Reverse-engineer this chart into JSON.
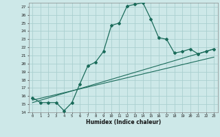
{
  "xlabel": "Humidex (Indice chaleur)",
  "ylabel": "",
  "bg_color": "#cde8e8",
  "grid_color": "#aacfcf",
  "line_color": "#1a6b5a",
  "xlim": [
    -0.5,
    23.5
  ],
  "ylim": [
    14,
    27.5
  ],
  "yticks": [
    14,
    15,
    16,
    17,
    18,
    19,
    20,
    21,
    22,
    23,
    24,
    25,
    26,
    27
  ],
  "xticks": [
    0,
    1,
    2,
    3,
    4,
    5,
    6,
    7,
    8,
    9,
    10,
    11,
    12,
    13,
    14,
    15,
    16,
    17,
    18,
    19,
    20,
    21,
    22,
    23
  ],
  "curve1_x": [
    0,
    1,
    2,
    3,
    4,
    5,
    6,
    7,
    8,
    9,
    10,
    11,
    12,
    13,
    14,
    15,
    16,
    17,
    18,
    19,
    20,
    21,
    22,
    23
  ],
  "curve1_y": [
    15.8,
    15.2,
    15.2,
    15.2,
    14.2,
    15.2,
    17.5,
    19.7,
    20.2,
    21.5,
    24.7,
    25.0,
    27.1,
    27.3,
    27.5,
    25.5,
    23.2,
    23.0,
    21.3,
    21.5,
    21.8,
    21.2,
    21.5,
    21.8
  ],
  "line2_x": [
    0,
    23
  ],
  "line2_y": [
    15.5,
    20.8
  ],
  "line3_x": [
    0,
    23
  ],
  "line3_y": [
    15.2,
    21.8
  ]
}
